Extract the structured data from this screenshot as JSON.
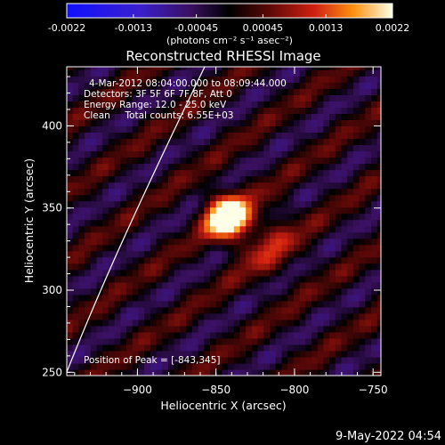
{
  "chart_data": {
    "type": "heatmap",
    "title": "Reconstructed RHESSI Image",
    "xlabel": "Heliocentric X (arcsec)",
    "ylabel": "Heliocentric Y (arcsec)",
    "xlim": [
      -945,
      -745
    ],
    "ylim": [
      248,
      436
    ],
    "xticks": [
      -900,
      -850,
      -800,
      -750
    ],
    "yticks": [
      250,
      300,
      350,
      400
    ],
    "colorbar": {
      "min": -0.0022,
      "max": 0.0022,
      "ticks": [
        -0.0022,
        -0.0013,
        -0.00045,
        0.00045,
        0.0013,
        0.0022
      ],
      "tick_labels": [
        "-0.0022",
        "-0.0013",
        "-0.00045",
        "0.00045",
        "0.0013",
        "0.0022"
      ],
      "unit": "(photons cm⁻² s⁻¹ asec⁻²)",
      "colormap": "blue-black-red-yellow-white"
    },
    "peak": {
      "x": -843,
      "y": 345
    },
    "annotations": [
      "4-Mar-2012 08:04:00.000 to 08:09:44.000",
      "Detectors: 3F 5F 6F 7F 8F, Att 0",
      "Energy Range: 12.0 - 25.0 keV",
      "Clean     Total counts: 6.55E+03",
      "Position of Peak = [-843,345]"
    ],
    "footer": "9-May-2022 04:54"
  }
}
